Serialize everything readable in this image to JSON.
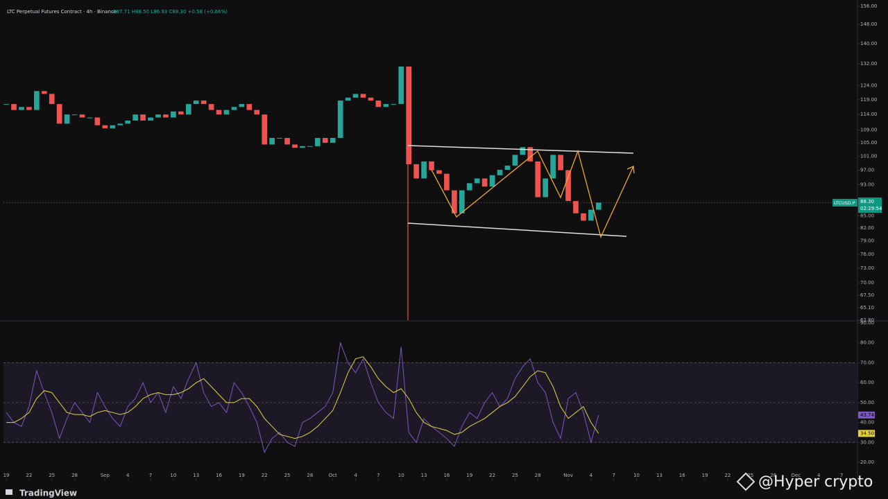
{
  "header": {
    "symbol_line": "LTC Perpetual Futures Contract · 4h · Binance",
    "ohlc": "O87.71 H88.50 L86.93 C88.30 +0.58 (+0.66%)"
  },
  "price_tag": {
    "symbol": "LTCUSD.P",
    "price": "88.30",
    "countdown": "02:29:54"
  },
  "watermark": {
    "brand": "TradingView",
    "author": "@Hyper  crypto"
  },
  "chart_data": [
    {
      "type": "candlestick",
      "log_scale": true,
      "up_color": "#26a69a",
      "down_color": "#ef5350",
      "x": [
        0,
        1,
        2,
        3,
        4,
        5,
        6,
        7,
        8,
        9,
        10,
        11,
        12,
        13,
        14,
        15,
        16,
        17,
        18,
        19,
        20,
        21,
        22,
        23,
        24,
        25,
        26,
        27,
        28,
        29,
        30,
        31,
        32,
        33,
        34,
        35,
        36,
        37,
        38,
        39,
        40,
        41,
        42,
        43,
        44,
        45,
        46,
        47,
        48,
        49,
        50,
        51,
        52,
        53,
        54,
        55,
        56,
        57,
        58,
        59,
        60,
        61,
        62,
        63,
        64,
        65,
        66,
        67,
        68,
        69,
        70,
        71,
        72,
        73,
        74,
        75,
        76,
        77,
        78
      ],
      "series": [
        {
          "name": "LTCUSD.P",
          "values": [
            117.5,
            115.5,
            116.5,
            115.5,
            122,
            121,
            117.5,
            111,
            114,
            114,
            113,
            113,
            110.5,
            109.5,
            110.5,
            111,
            112,
            114,
            112,
            113,
            114,
            113,
            115,
            114,
            117.5,
            118.7,
            117.5,
            115.5,
            114,
            115.5,
            116.5,
            117.5,
            115.5,
            114,
            104.5,
            106.5,
            106.5,
            104.5,
            103.5,
            104,
            104,
            106.5,
            105,
            106.5,
            118.7,
            119.7,
            121,
            119.7,
            118.7,
            116.5,
            117.5,
            117.5,
            131,
            98.7,
            94.7,
            99.5,
            97,
            96,
            91.5,
            85.6,
            91.5,
            93.4,
            94.7,
            92.5,
            95.6,
            97.1,
            98.3,
            101.4,
            103.7,
            99.5,
            89.7,
            94.7,
            101.4,
            97,
            88.7,
            85.6,
            83.8,
            86.5,
            88.3
          ]
        }
      ],
      "xlim": [
        -0.37,
        112
      ],
      "ylim": [
        62.8,
        156
      ],
      "yticks": [
        {
          "value": 156,
          "label": "156.00"
        },
        {
          "value": 148,
          "label": "148.00"
        },
        {
          "value": 140,
          "label": "140.00"
        },
        {
          "value": 132,
          "label": "132.00"
        },
        {
          "value": 124,
          "label": "124.00"
        },
        {
          "value": 119,
          "label": "119.00"
        },
        {
          "value": 114,
          "label": "114.00"
        },
        {
          "value": 109,
          "label": "109.00"
        },
        {
          "value": 105,
          "label": "105.00"
        },
        {
          "value": 101,
          "label": "101.00"
        },
        {
          "value": 97,
          "label": "97.00"
        },
        {
          "value": 93,
          "label": "93.00"
        },
        {
          "value": 85,
          "label": "85.00"
        },
        {
          "value": 82,
          "label": "82.00"
        },
        {
          "value": 79,
          "label": "79.00"
        },
        {
          "value": 76,
          "label": "76.00"
        },
        {
          "value": 73,
          "label": "73.00"
        },
        {
          "value": 70,
          "label": "70.00"
        },
        {
          "value": 67.5,
          "label": "67.50"
        },
        {
          "value": 65.1,
          "label": "65.10"
        },
        {
          "value": 62.8,
          "label": "62.80"
        }
      ]
    },
    {
      "type": "line",
      "series": [
        {
          "name": "RSI",
          "color": "#7e57c2",
          "values": [
            45,
            40,
            38,
            48,
            66,
            55,
            45,
            32,
            42,
            50,
            45,
            40,
            55,
            48,
            42,
            38,
            48,
            52,
            60,
            50,
            55,
            45,
            58,
            52,
            62,
            70,
            55,
            48,
            50,
            45,
            60,
            55,
            48,
            40,
            25,
            32,
            35,
            30,
            28,
            40,
            42,
            45,
            48,
            55,
            80,
            70,
            65,
            72,
            60,
            50,
            45,
            42,
            78,
            35,
            30,
            42,
            38,
            35,
            32,
            28,
            38,
            45,
            42,
            50,
            55,
            48,
            52,
            62,
            68,
            72,
            60,
            55,
            40,
            32,
            52,
            55,
            45,
            30,
            43.74
          ],
          "last_label": "43.74"
        },
        {
          "name": "RSI MA",
          "color": "#e8d43a",
          "values": [
            40,
            40,
            42,
            45,
            52,
            56,
            55,
            50,
            45,
            44,
            44,
            43,
            45,
            46,
            45,
            44,
            45,
            48,
            52,
            54,
            55,
            54,
            54,
            55,
            57,
            60,
            62,
            58,
            54,
            50,
            50,
            52,
            52,
            48,
            42,
            38,
            34,
            33,
            32,
            33,
            35,
            38,
            42,
            46,
            55,
            65,
            72,
            73,
            68,
            62,
            58,
            55,
            57,
            52,
            45,
            40,
            38,
            37,
            36,
            34,
            35,
            38,
            40,
            42,
            45,
            48,
            50,
            53,
            58,
            63,
            66,
            65,
            58,
            48,
            42,
            45,
            48,
            40,
            34.5
          ],
          "last_label": "34.50"
        }
      ],
      "band": [
        30,
        70
      ],
      "midline": 50,
      "ylim": [
        12,
        90
      ],
      "yticks": [
        {
          "value": 90,
          "label": "90.00"
        },
        {
          "value": 80,
          "label": "80.00"
        },
        {
          "value": 70,
          "label": "70.00"
        },
        {
          "value": 60,
          "label": "60.00"
        },
        {
          "value": 50,
          "label": "50.00"
        },
        {
          "value": 40,
          "label": "40.00"
        },
        {
          "value": 30,
          "label": "30.00"
        },
        {
          "value": 20,
          "label": "20.00"
        }
      ],
      "xticks": [
        {
          "value": 0,
          "label": "19"
        },
        {
          "value": 3,
          "label": "22"
        },
        {
          "value": 6,
          "label": "25"
        },
        {
          "value": 9,
          "label": "28"
        },
        {
          "value": 13,
          "label": "Sep"
        },
        {
          "value": 16,
          "label": "4"
        },
        {
          "value": 19,
          "label": "7"
        },
        {
          "value": 22,
          "label": "10"
        },
        {
          "value": 25,
          "label": "13"
        },
        {
          "value": 28,
          "label": "16"
        },
        {
          "value": 31,
          "label": "19"
        },
        {
          "value": 34,
          "label": "22"
        },
        {
          "value": 37,
          "label": "25"
        },
        {
          "value": 40,
          "label": "28"
        },
        {
          "value": 43,
          "label": "Oct"
        },
        {
          "value": 46,
          "label": "4"
        },
        {
          "value": 49,
          "label": "7"
        },
        {
          "value": 52,
          "label": "10"
        },
        {
          "value": 55,
          "label": "13"
        },
        {
          "value": 58,
          "label": "16"
        },
        {
          "value": 61,
          "label": "19"
        },
        {
          "value": 64,
          "label": "22"
        },
        {
          "value": 67,
          "label": "25"
        },
        {
          "value": 70,
          "label": "28"
        },
        {
          "value": 74,
          "label": "Nov"
        },
        {
          "value": 77,
          "label": "4"
        },
        {
          "value": 80,
          "label": "7"
        },
        {
          "value": 83,
          "label": "10"
        },
        {
          "value": 86,
          "label": "13"
        },
        {
          "value": 89,
          "label": "16"
        },
        {
          "value": 92,
          "label": "19"
        },
        {
          "value": 95,
          "label": "22"
        },
        {
          "value": 98,
          "label": "25"
        },
        {
          "value": 101,
          "label": "28"
        },
        {
          "value": 104,
          "label": "Dec"
        },
        {
          "value": 107,
          "label": "4"
        },
        {
          "value": 110,
          "label": "7"
        }
      ]
    }
  ]
}
